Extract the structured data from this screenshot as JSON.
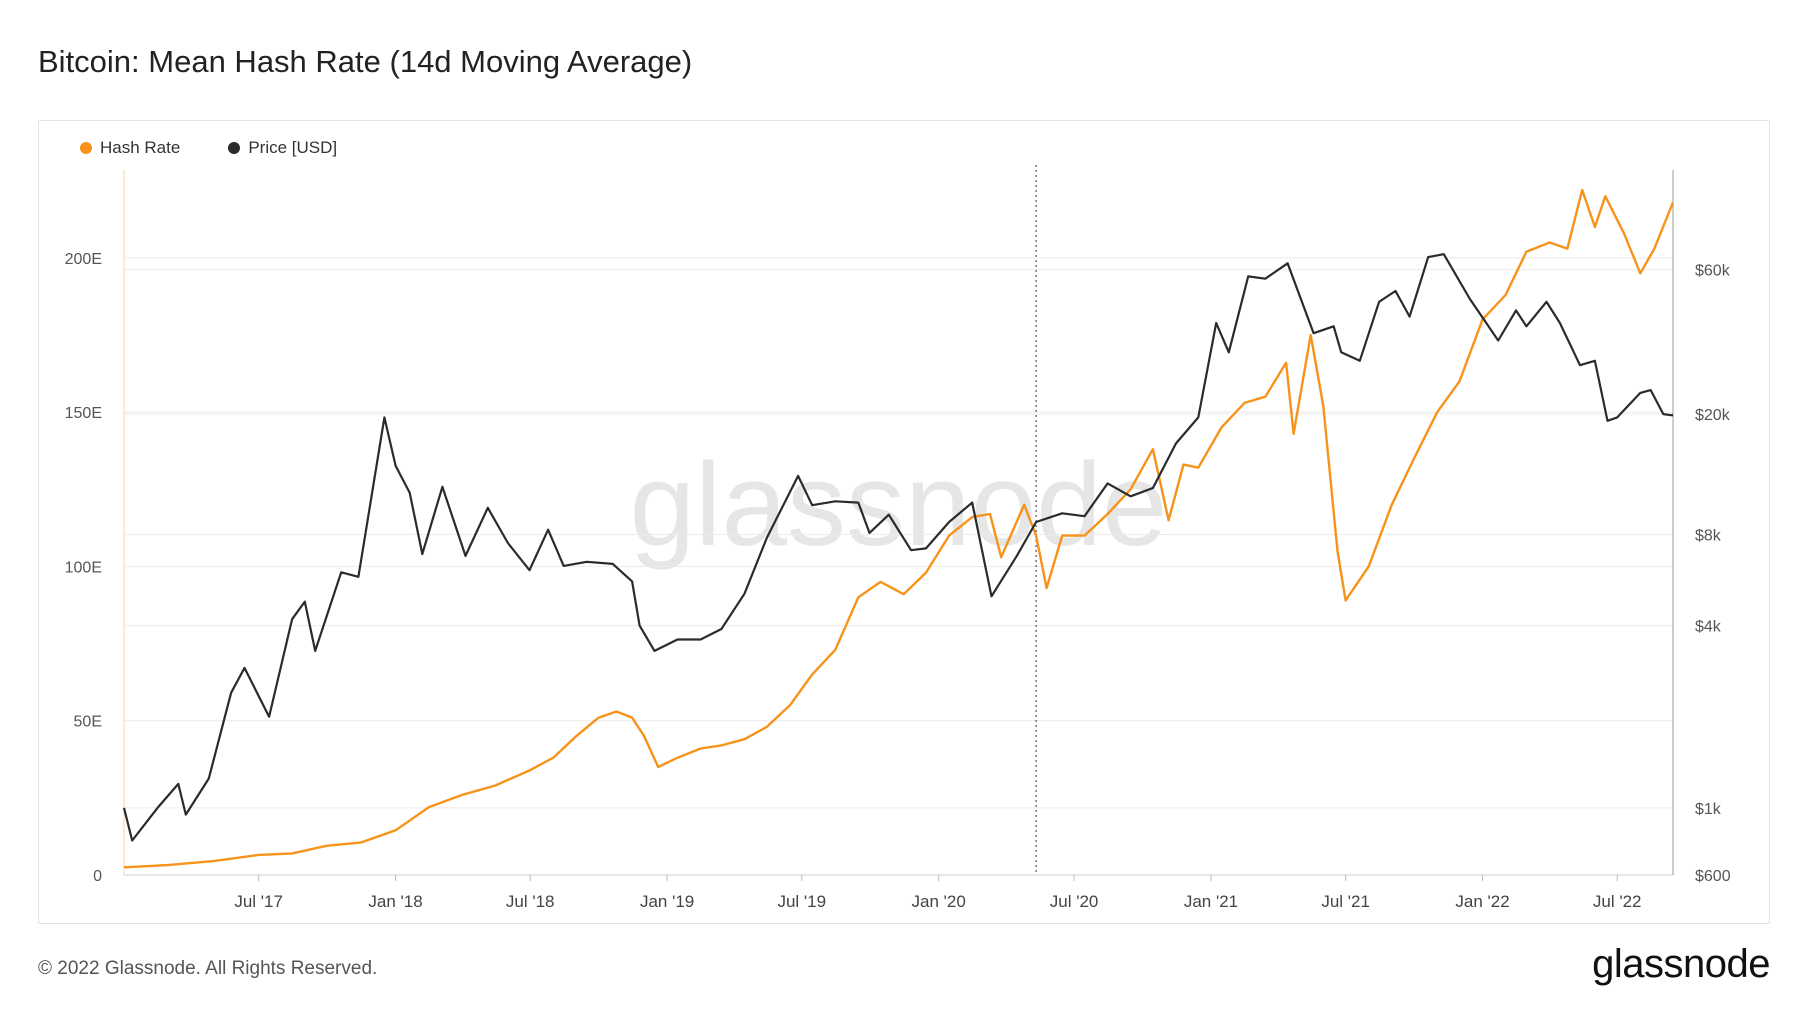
{
  "title": "Bitcoin: Mean Hash Rate (14d Moving Average)",
  "footer": "© 2022 Glassnode. All Rights Reserved.",
  "brand": "glassnode",
  "watermark": "glassnode",
  "colors": {
    "hash_rate": "#f7931a",
    "price": "#2b2b2b",
    "grid": "#ececec",
    "watermark": "#e6e6e6"
  },
  "chart_data": {
    "type": "line",
    "legend_placement": "top-left",
    "grid": true,
    "x_ticks": [
      "Jul '17",
      "Jan '18",
      "Jul '18",
      "Jan '19",
      "Jul '19",
      "Jan '20",
      "Jul '20",
      "Jan '21",
      "Jul '21",
      "Jan '22",
      "Jul '22"
    ],
    "x_tick_values": [
      "2017-07-01",
      "2018-01-01",
      "2018-07-01",
      "2019-01-01",
      "2019-07-01",
      "2020-01-01",
      "2020-07-01",
      "2021-01-01",
      "2021-07-01",
      "2022-01-01",
      "2022-07-01"
    ],
    "x_range": [
      "2017-01-01",
      "2022-09-14"
    ],
    "y_left": {
      "ticks": [
        "0",
        "50E",
        "100E",
        "150E",
        "200E"
      ],
      "tick_values": [
        0,
        50,
        100,
        150,
        200
      ],
      "range": [
        0,
        222
      ]
    },
    "y_right": {
      "ticks": [
        "$600",
        "$1k",
        "$4k",
        "$8k",
        "$20k",
        "$60k"
      ],
      "tick_values": [
        600,
        1000,
        4000,
        8000,
        20000,
        60000
      ],
      "scale": "log",
      "range": [
        600,
        110000
      ]
    },
    "vertical_marker": "2020-05-11",
    "series": [
      {
        "name": "Hash Rate",
        "axis": "left",
        "points": [
          [
            "2017-01-01",
            2.5
          ],
          [
            "2017-03-01",
            3.2
          ],
          [
            "2017-05-01",
            4.5
          ],
          [
            "2017-07-01",
            6.5
          ],
          [
            "2017-08-15",
            7.0
          ],
          [
            "2017-10-01",
            9.5
          ],
          [
            "2017-11-15",
            10.5
          ],
          [
            "2018-01-01",
            14.5
          ],
          [
            "2018-02-15",
            22
          ],
          [
            "2018-04-01",
            26
          ],
          [
            "2018-05-15",
            29
          ],
          [
            "2018-07-01",
            34
          ],
          [
            "2018-08-01",
            38
          ],
          [
            "2018-09-01",
            45
          ],
          [
            "2018-10-01",
            51
          ],
          [
            "2018-10-25",
            53
          ],
          [
            "2018-11-15",
            51
          ],
          [
            "2018-12-01",
            45
          ],
          [
            "2018-12-20",
            35
          ],
          [
            "2019-01-15",
            38
          ],
          [
            "2019-02-15",
            41
          ],
          [
            "2019-03-15",
            42
          ],
          [
            "2019-04-15",
            44
          ],
          [
            "2019-05-15",
            48
          ],
          [
            "2019-06-15",
            55
          ],
          [
            "2019-07-15",
            65
          ],
          [
            "2019-08-15",
            73
          ],
          [
            "2019-09-15",
            90
          ],
          [
            "2019-10-15",
            95
          ],
          [
            "2019-11-15",
            91
          ],
          [
            "2019-12-15",
            98
          ],
          [
            "2020-01-15",
            110
          ],
          [
            "2020-02-15",
            116
          ],
          [
            "2020-03-10",
            117
          ],
          [
            "2020-03-25",
            103
          ],
          [
            "2020-04-25",
            120
          ],
          [
            "2020-05-11",
            110
          ],
          [
            "2020-05-25",
            93
          ],
          [
            "2020-06-15",
            110
          ],
          [
            "2020-07-15",
            110
          ],
          [
            "2020-08-15",
            117
          ],
          [
            "2020-09-15",
            125
          ],
          [
            "2020-10-15",
            138
          ],
          [
            "2020-11-05",
            115
          ],
          [
            "2020-11-25",
            133
          ],
          [
            "2020-12-15",
            132
          ],
          [
            "2021-01-15",
            145
          ],
          [
            "2021-02-15",
            153
          ],
          [
            "2021-03-15",
            155
          ],
          [
            "2021-04-12",
            166
          ],
          [
            "2021-04-22",
            143
          ],
          [
            "2021-05-15",
            175
          ],
          [
            "2021-06-01",
            152
          ],
          [
            "2021-06-20",
            105
          ],
          [
            "2021-07-01",
            89
          ],
          [
            "2021-08-01",
            100
          ],
          [
            "2021-09-01",
            120
          ],
          [
            "2021-10-01",
            135
          ],
          [
            "2021-11-01",
            150
          ],
          [
            "2021-12-01",
            160
          ],
          [
            "2022-01-01",
            180
          ],
          [
            "2022-02-01",
            188
          ],
          [
            "2022-03-01",
            202
          ],
          [
            "2022-04-01",
            205
          ],
          [
            "2022-04-25",
            203
          ],
          [
            "2022-05-15",
            222
          ],
          [
            "2022-06-01",
            210
          ],
          [
            "2022-06-15",
            220
          ],
          [
            "2022-07-10",
            208
          ],
          [
            "2022-08-01",
            195
          ],
          [
            "2022-08-20",
            203
          ],
          [
            "2022-09-14",
            218
          ]
        ]
      },
      {
        "name": "Price [USD]",
        "axis": "right",
        "points": [
          [
            "2017-01-01",
            1000
          ],
          [
            "2017-01-12",
            780
          ],
          [
            "2017-02-15",
            1000
          ],
          [
            "2017-03-15",
            1200
          ],
          [
            "2017-03-25",
            950
          ],
          [
            "2017-04-25",
            1250
          ],
          [
            "2017-05-25",
            2400
          ],
          [
            "2017-06-12",
            2900
          ],
          [
            "2017-07-15",
            2000
          ],
          [
            "2017-08-15",
            4200
          ],
          [
            "2017-09-01",
            4800
          ],
          [
            "2017-09-15",
            3300
          ],
          [
            "2017-10-20",
            6000
          ],
          [
            "2017-11-12",
            5800
          ],
          [
            "2017-12-17",
            19500
          ],
          [
            "2018-01-01",
            13500
          ],
          [
            "2018-01-20",
            11000
          ],
          [
            "2018-02-06",
            6900
          ],
          [
            "2018-03-05",
            11500
          ],
          [
            "2018-04-05",
            6800
          ],
          [
            "2018-05-05",
            9800
          ],
          [
            "2018-06-01",
            7500
          ],
          [
            "2018-06-30",
            6100
          ],
          [
            "2018-07-25",
            8300
          ],
          [
            "2018-08-15",
            6300
          ],
          [
            "2018-09-15",
            6500
          ],
          [
            "2018-10-20",
            6400
          ],
          [
            "2018-11-15",
            5600
          ],
          [
            "2018-11-25",
            4000
          ],
          [
            "2018-12-15",
            3300
          ],
          [
            "2019-01-15",
            3600
          ],
          [
            "2019-02-15",
            3600
          ],
          [
            "2019-03-15",
            3900
          ],
          [
            "2019-04-15",
            5100
          ],
          [
            "2019-05-15",
            7800
          ],
          [
            "2019-06-26",
            12500
          ],
          [
            "2019-07-15",
            10000
          ],
          [
            "2019-08-15",
            10300
          ],
          [
            "2019-09-15",
            10200
          ],
          [
            "2019-09-30",
            8100
          ],
          [
            "2019-10-26",
            9300
          ],
          [
            "2019-11-25",
            7100
          ],
          [
            "2019-12-15",
            7200
          ],
          [
            "2020-01-15",
            8800
          ],
          [
            "2020-02-15",
            10200
          ],
          [
            "2020-03-12",
            5000
          ],
          [
            "2020-04-15",
            6800
          ],
          [
            "2020-05-11",
            8800
          ],
          [
            "2020-06-15",
            9400
          ],
          [
            "2020-07-15",
            9200
          ],
          [
            "2020-08-15",
            11800
          ],
          [
            "2020-09-15",
            10700
          ],
          [
            "2020-10-15",
            11400
          ],
          [
            "2020-11-15",
            16000
          ],
          [
            "2020-12-15",
            19500
          ],
          [
            "2021-01-08",
            40000
          ],
          [
            "2021-01-25",
            32000
          ],
          [
            "2021-02-20",
            57000
          ],
          [
            "2021-03-15",
            56000
          ],
          [
            "2021-04-14",
            63000
          ],
          [
            "2021-05-19",
            37000
          ],
          [
            "2021-06-15",
            39000
          ],
          [
            "2021-06-25",
            32000
          ],
          [
            "2021-07-20",
            30000
          ],
          [
            "2021-08-15",
            47000
          ],
          [
            "2021-09-06",
            51000
          ],
          [
            "2021-09-25",
            42000
          ],
          [
            "2021-10-20",
            66000
          ],
          [
            "2021-11-10",
            67500
          ],
          [
            "2021-12-15",
            48000
          ],
          [
            "2022-01-22",
            35000
          ],
          [
            "2022-02-15",
            44000
          ],
          [
            "2022-03-01",
            39000
          ],
          [
            "2022-03-28",
            47000
          ],
          [
            "2022-04-15",
            40000
          ],
          [
            "2022-05-12",
            29000
          ],
          [
            "2022-06-01",
            30000
          ],
          [
            "2022-06-18",
            19000
          ],
          [
            "2022-07-01",
            19500
          ],
          [
            "2022-08-01",
            23500
          ],
          [
            "2022-08-15",
            24000
          ],
          [
            "2022-09-01",
            20000
          ],
          [
            "2022-09-14",
            19800
          ]
        ]
      }
    ]
  }
}
